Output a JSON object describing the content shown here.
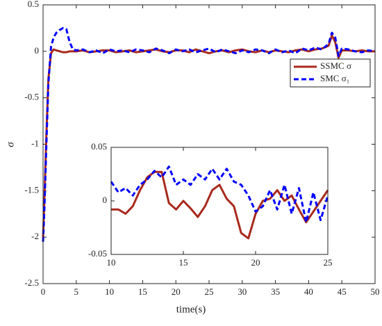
{
  "chart_data": [
    {
      "type": "line",
      "xlabel": "time(s)",
      "ylabel": "σ",
      "legend": "upper right",
      "grid": false,
      "xlim": [
        0,
        50
      ],
      "xticks": [
        0,
        5,
        10,
        15,
        20,
        25,
        30,
        35,
        40,
        45,
        50
      ],
      "ylim": [
        -2.5,
        0.5
      ],
      "yticks": [
        -2.5,
        -2,
        -1.5,
        -1,
        -0.5,
        0,
        0.5
      ],
      "x": [
        0,
        0.2,
        0.5,
        0.8,
        1.2,
        1.6,
        2,
        2.5,
        3,
        3.5,
        4,
        4.5,
        5,
        6,
        7,
        8,
        9,
        10,
        11,
        12,
        13,
        14,
        15,
        16,
        17,
        18,
        19,
        20,
        21,
        22,
        23,
        24,
        25,
        26,
        27,
        28,
        29,
        30,
        31,
        32,
        33,
        34,
        35,
        36,
        37,
        38,
        39,
        40,
        41,
        42,
        43,
        43.5,
        44,
        44.5,
        45,
        46,
        47,
        48,
        49,
        50
      ],
      "series": [
        {
          "name": "SSMC σ",
          "color": "#a8291c",
          "dash": false,
          "values": [
            -2,
            -1.6,
            -0.9,
            -0.3,
            -0.02,
            0.02,
            0.01,
            0,
            -0.01,
            -0.01,
            0,
            0,
            0,
            0.01,
            -0.01,
            0,
            0.01,
            0.01,
            -0.01,
            0,
            0.01,
            -0.01,
            0,
            0.01,
            0.02,
            0,
            -0.01,
            0.01,
            0.01,
            -0.01,
            0.02,
            0,
            -0.02,
            0,
            0.01,
            -0.01,
            0.01,
            0.02,
            0,
            -0.01,
            0.01,
            -0.01,
            0.01,
            0,
            -0.01,
            0.01,
            0.02,
            0,
            0.02,
            0.03,
            0.06,
            0.17,
            0.1,
            -0.07,
            0.01,
            0.01,
            0,
            0.01,
            0,
            0
          ]
        },
        {
          "name": "SMC σ₁",
          "color": "#0000ff",
          "dash": true,
          "values": [
            -2.05,
            -1.7,
            -1.0,
            -0.35,
            0.05,
            0.15,
            0.2,
            0.23,
            0.25,
            0.24,
            0.1,
            0.02,
            0.01,
            0.02,
            -0.01,
            0.01,
            -0.02,
            0.02,
            0,
            0.01,
            -0.01,
            0.02,
            0.01,
            -0.01,
            0.03,
            0.01,
            -0.02,
            0.02,
            0,
            0.02,
            -0.01,
            0.01,
            0.03,
            -0.01,
            0.02,
            0,
            -0.02,
            0.01,
            -0.01,
            0.02,
            0.01,
            -0.02,
            0.02,
            -0.01,
            0.01,
            -0.02,
            0.03,
            0.01,
            0.04,
            0.02,
            0.08,
            0.2,
            0.15,
            -0.05,
            0.03,
            0.02,
            0,
            -0.01,
            0.01,
            0
          ]
        }
      ]
    },
    {
      "type": "line",
      "grid": false,
      "xlim": [
        10,
        25
      ],
      "xticks": [
        10,
        15,
        20,
        25
      ],
      "ylim": [
        -0.05,
        0.05
      ],
      "yticks": [
        -0.05,
        0,
        0.05
      ],
      "x": [
        10,
        10.5,
        11,
        11.5,
        12,
        12.5,
        13,
        13.5,
        14,
        14.5,
        15,
        15.5,
        16,
        16.5,
        17,
        17.5,
        18,
        18.5,
        19,
        19.5,
        20,
        20.5,
        21,
        21.5,
        22,
        22.5,
        23,
        23.5,
        24,
        24.5,
        25
      ],
      "series": [
        {
          "color": "#a8291c",
          "dash": false,
          "values": [
            -0.008,
            -0.008,
            -0.012,
            -0.005,
            0.01,
            0.022,
            0.027,
            0.027,
            -0.002,
            -0.008,
            0,
            -0.007,
            -0.015,
            -0.005,
            0.01,
            0.015,
            0.002,
            -0.005,
            -0.03,
            -0.035,
            -0.012,
            0,
            0.002,
            0.01,
            0,
            0.005,
            -0.008,
            -0.02,
            -0.01,
            0,
            0.01
          ]
        },
        {
          "color": "#0000ff",
          "dash": true,
          "values": [
            0.018,
            0.008,
            0.012,
            0.005,
            0.015,
            0.02,
            0.028,
            0.022,
            0.032,
            0.015,
            0.02,
            0.015,
            0.025,
            0.02,
            0.03,
            0.02,
            0.03,
            0.018,
            0.015,
            0.005,
            -0.01,
            -0.005,
            0.01,
            -0.008,
            0.015,
            -0.012,
            0.012,
            -0.02,
            0.008,
            -0.018,
            0.005
          ]
        }
      ]
    }
  ]
}
